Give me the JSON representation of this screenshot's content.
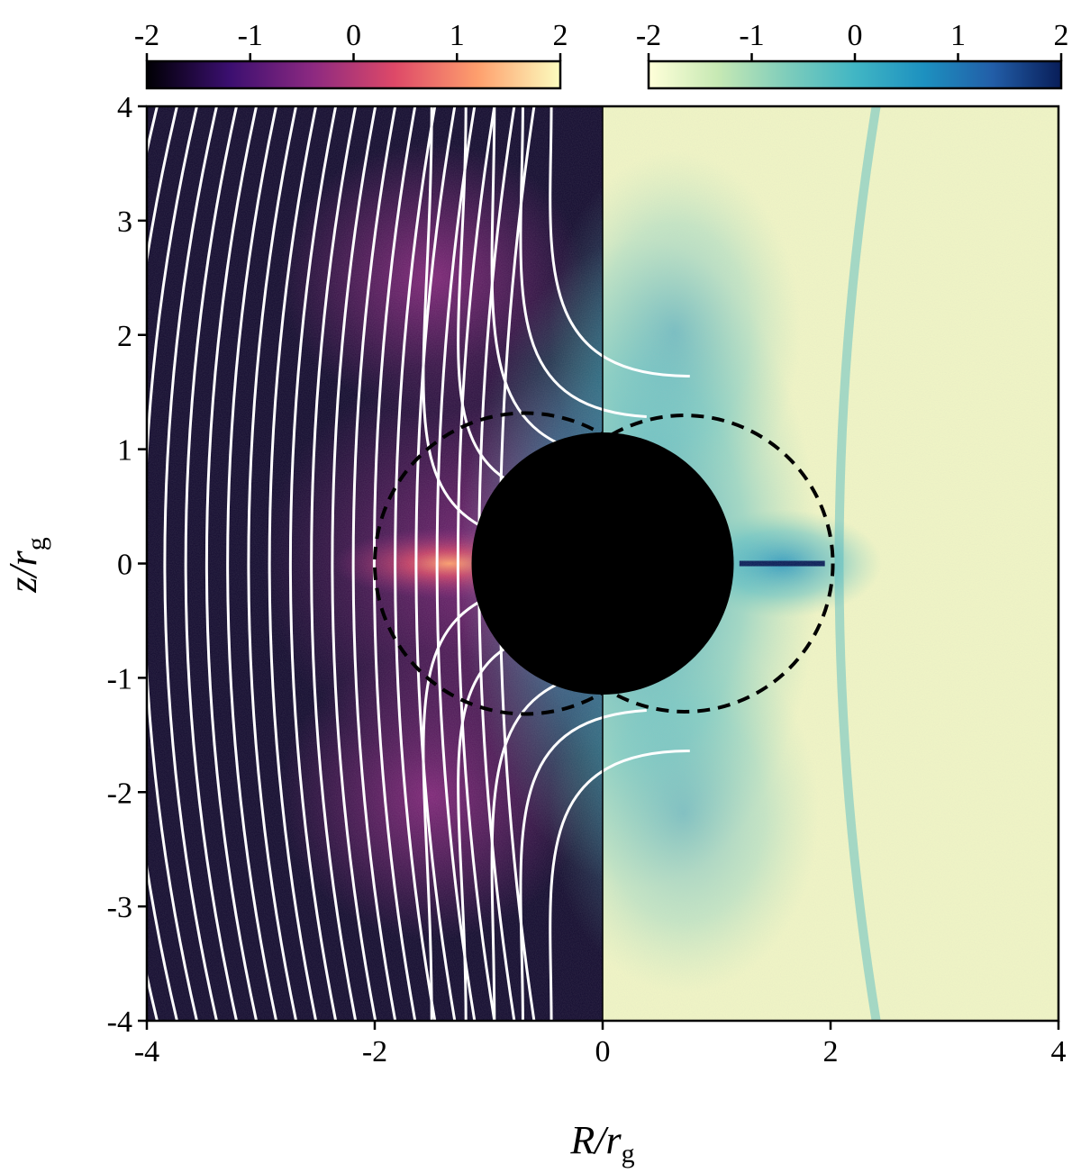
{
  "chart_data": {
    "type": "heatmap",
    "xlabel": {
      "text": "R/r",
      "subscript": "g"
    },
    "ylabel": {
      "text": "z/r",
      "subscript": "g"
    },
    "xlim": [
      -4,
      4
    ],
    "xticks": [
      -4,
      -2,
      0,
      2,
      4
    ],
    "ylim": [
      -4,
      4
    ],
    "yticks": [
      -4,
      -3,
      -2,
      -1,
      0,
      1,
      2,
      3,
      4
    ],
    "black_hole": {
      "center_x": 0,
      "radius": 1.15,
      "color": "#000000"
    },
    "dashed_circles": [
      {
        "center_x": -0.68,
        "radius": 1.32
      },
      {
        "center_x": 0.72,
        "radius": 1.3
      }
    ],
    "colorbars": [
      {
        "colors": [
          "#000004",
          "#3b0f70",
          "#8c2981",
          "#de4968",
          "#fe9f6d",
          "#fcfdbf"
        ],
        "lim": [
          -2,
          2
        ],
        "ticks": [
          -2,
          -1,
          0,
          1,
          2
        ]
      },
      {
        "colors": [
          "#ffffd9",
          "#c7e9b4",
          "#7fcdbb",
          "#41b6c4",
          "#1d91c0",
          "#225ea8",
          "#081d58"
        ],
        "lim": [
          -2,
          2
        ],
        "ticks": [
          -2,
          -1,
          0,
          1,
          2
        ]
      }
    ]
  }
}
